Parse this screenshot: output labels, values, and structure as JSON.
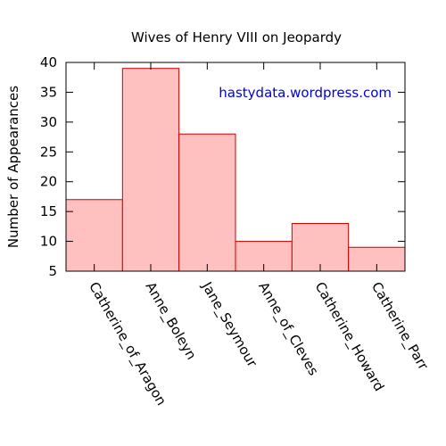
{
  "chart_data": {
    "type": "bar",
    "title": "Wives of Henry VIII on Jeopardy",
    "xlabel": "",
    "ylabel": "Number of Appearances",
    "categories": [
      "Catherine_of_Aragon",
      "Anne_Boleyn",
      "Jane_Seymour",
      "Anne_of_Cleves",
      "Catherine_Howard",
      "Catherine_Parr"
    ],
    "values": [
      17,
      39,
      28,
      10,
      13,
      9
    ],
    "ylim": [
      5,
      40
    ],
    "yticks": [
      5,
      10,
      15,
      20,
      25,
      30,
      35,
      40
    ],
    "annotation": "hastydata.wordpress.com",
    "grid": false,
    "bar_fill": "#ffc0c0",
    "bar_stroke": "#cc0000",
    "annotation_color": "#0000dd"
  }
}
